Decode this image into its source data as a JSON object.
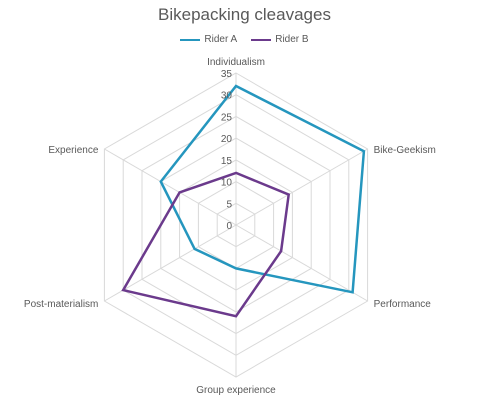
{
  "chart_data": {
    "type": "radar",
    "title": "Bikepacking cleavages",
    "axes": [
      "Individualism",
      "Bike-Geekism",
      "Performance",
      "Group experience",
      "Post-materialism",
      "Experience"
    ],
    "rlim": [
      0,
      35
    ],
    "ticks": [
      0,
      5,
      10,
      15,
      20,
      25,
      30,
      35
    ],
    "grid": true,
    "legend_position": "top",
    "series": [
      {
        "name": "Rider A",
        "color": "#2596be",
        "values": [
          32,
          34,
          31,
          10,
          11,
          20
        ]
      },
      {
        "name": "Rider B",
        "color": "#6b3a8c",
        "values": [
          12,
          14,
          12,
          21,
          30,
          15
        ]
      }
    ]
  }
}
